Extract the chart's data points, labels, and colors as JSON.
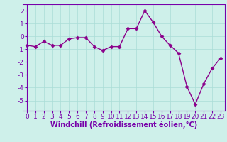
{
  "x": [
    0,
    1,
    2,
    3,
    4,
    5,
    6,
    7,
    8,
    9,
    10,
    11,
    12,
    13,
    14,
    15,
    16,
    17,
    18,
    19,
    20,
    21,
    22,
    23
  ],
  "y": [
    -0.7,
    -0.8,
    -0.4,
    -0.7,
    -0.7,
    -0.2,
    -0.1,
    -0.1,
    -0.8,
    -1.1,
    -0.8,
    -0.8,
    0.6,
    0.6,
    2.0,
    1.1,
    0.0,
    -0.7,
    -1.3,
    -3.9,
    -5.3,
    -3.7,
    -2.5,
    -1.7
  ],
  "line_color": "#8B008B",
  "marker": "D",
  "markersize": 2.5,
  "linewidth": 1.0,
  "bg_color": "#cef0ea",
  "grid_color": "#aaddd6",
  "xlabel": "Windchill (Refroidissement éolien,°C)",
  "xlabel_fontsize": 7,
  "tick_fontsize": 6.5,
  "ylim": [
    -5.8,
    2.5
  ],
  "xlim": [
    -0.5,
    23.5
  ],
  "yticks": [
    -5,
    -4,
    -3,
    -2,
    -1,
    0,
    1,
    2
  ],
  "xticks": [
    0,
    1,
    2,
    3,
    4,
    5,
    6,
    7,
    8,
    9,
    10,
    11,
    12,
    13,
    14,
    15,
    16,
    17,
    18,
    19,
    20,
    21,
    22,
    23
  ],
  "spine_color": "#7700aa",
  "axis_color": "#7700aa"
}
